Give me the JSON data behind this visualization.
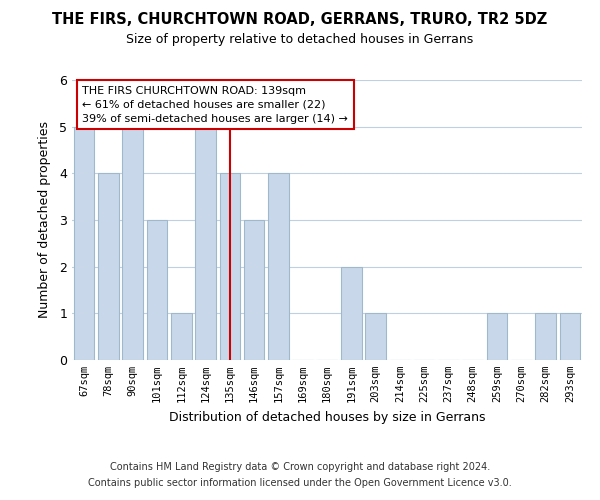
{
  "title": "THE FIRS, CHURCHTOWN ROAD, GERRANS, TRURO, TR2 5DZ",
  "subtitle": "Size of property relative to detached houses in Gerrans",
  "xlabel": "Distribution of detached houses by size in Gerrans",
  "ylabel": "Number of detached properties",
  "categories": [
    "67sqm",
    "78sqm",
    "90sqm",
    "101sqm",
    "112sqm",
    "124sqm",
    "135sqm",
    "146sqm",
    "157sqm",
    "169sqm",
    "180sqm",
    "191sqm",
    "203sqm",
    "214sqm",
    "225sqm",
    "237sqm",
    "248sqm",
    "259sqm",
    "270sqm",
    "282sqm",
    "293sqm"
  ],
  "values": [
    5,
    4,
    5,
    3,
    1,
    5,
    4,
    3,
    4,
    0,
    0,
    2,
    1,
    0,
    0,
    0,
    0,
    1,
    0,
    1,
    1
  ],
  "bar_color": "#c8d8ea",
  "bar_edge_color": "#a0b8cc",
  "highlight_index": 6,
  "highlight_line_color": "#cc0000",
  "ylim": [
    0,
    6
  ],
  "yticks": [
    0,
    1,
    2,
    3,
    4,
    5,
    6
  ],
  "annotation_title": "THE FIRS CHURCHTOWN ROAD: 139sqm",
  "annotation_line1": "← 61% of detached houses are smaller (22)",
  "annotation_line2": "39% of semi-detached houses are larger (14) →",
  "annotation_box_color": "#ffffff",
  "annotation_border_color": "#cc0000",
  "footer_line1": "Contains HM Land Registry data © Crown copyright and database right 2024.",
  "footer_line2": "Contains public sector information licensed under the Open Government Licence v3.0.",
  "background_color": "#ffffff",
  "grid_color": "#c0d0e0"
}
